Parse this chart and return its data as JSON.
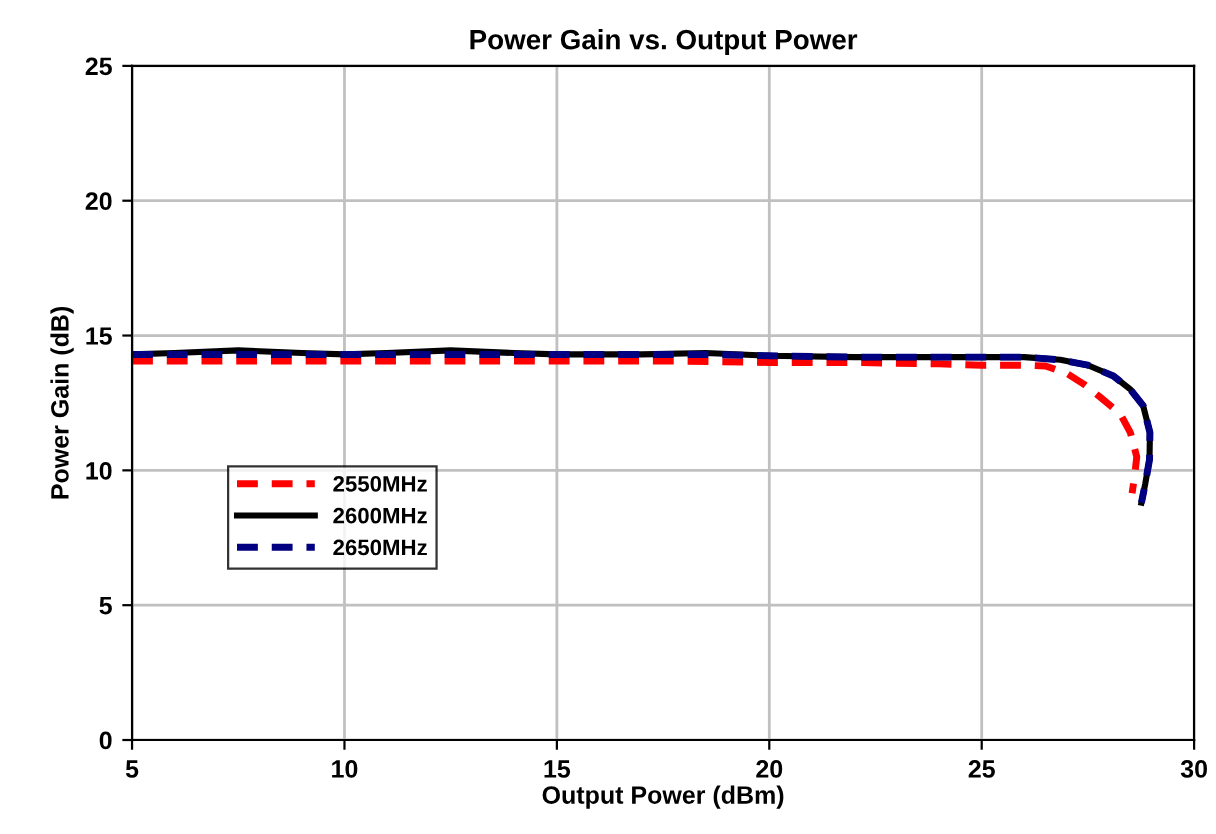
{
  "chart_data": {
    "type": "line",
    "title": "Power Gain vs. Output Power",
    "xlabel": "Output Power (dBm)",
    "ylabel": "Power Gain (dB)",
    "xlim": [
      5,
      30
    ],
    "xticks": [
      5,
      10,
      15,
      20,
      25,
      30
    ],
    "ylim": [
      0,
      25
    ],
    "yticks": [
      0,
      5,
      10,
      15,
      20,
      25
    ],
    "grid": true,
    "legend": "left",
    "marker": "none",
    "series": [
      {
        "name": "2550MHz",
        "color": "#ff0000",
        "line_style": "dashed",
        "x": [
          5,
          8,
          10,
          12,
          14,
          16,
          18,
          20,
          22,
          24,
          25,
          26,
          26.5,
          27,
          27.4,
          27.8,
          28.26,
          28.5,
          28.65,
          28.6,
          28.54
        ],
        "values": [
          14.05,
          14.05,
          14.05,
          14.05,
          14.05,
          14.05,
          14.05,
          14.0,
          14.0,
          13.95,
          13.9,
          13.9,
          13.87,
          13.6,
          13.2,
          12.7,
          12.1,
          11.4,
          10.5,
          9.8,
          9.15
        ]
      },
      {
        "name": "2600MHz",
        "color": "#000000",
        "line_style": "solid",
        "x": [
          5,
          6,
          7.5,
          9,
          10,
          11,
          12.5,
          14,
          15,
          17,
          18.5,
          20,
          22,
          24,
          25,
          26,
          26.85,
          27.5,
          28.1,
          28.5,
          28.8,
          28.96,
          28.95,
          28.85,
          28.76
        ],
        "values": [
          14.3,
          14.35,
          14.45,
          14.35,
          14.3,
          14.35,
          14.45,
          14.35,
          14.3,
          14.3,
          14.35,
          14.25,
          14.2,
          14.2,
          14.2,
          14.2,
          14.1,
          13.9,
          13.5,
          13.0,
          12.4,
          11.4,
          10.4,
          9.5,
          8.8
        ]
      },
      {
        "name": "2650MHz",
        "color": "#000080",
        "line_style": "dashed",
        "x": [
          5,
          7.5,
          10,
          12.5,
          15,
          17,
          18.5,
          20,
          22,
          24,
          25,
          26,
          26.85,
          27.5,
          28.1,
          28.5,
          28.8,
          28.96,
          28.95,
          28.85,
          28.76
        ],
        "values": [
          14.3,
          14.3,
          14.3,
          14.3,
          14.3,
          14.3,
          14.3,
          14.25,
          14.2,
          14.2,
          14.2,
          14.2,
          14.1,
          13.9,
          13.5,
          13.0,
          12.4,
          11.4,
          10.4,
          9.5,
          8.8
        ]
      }
    ]
  }
}
